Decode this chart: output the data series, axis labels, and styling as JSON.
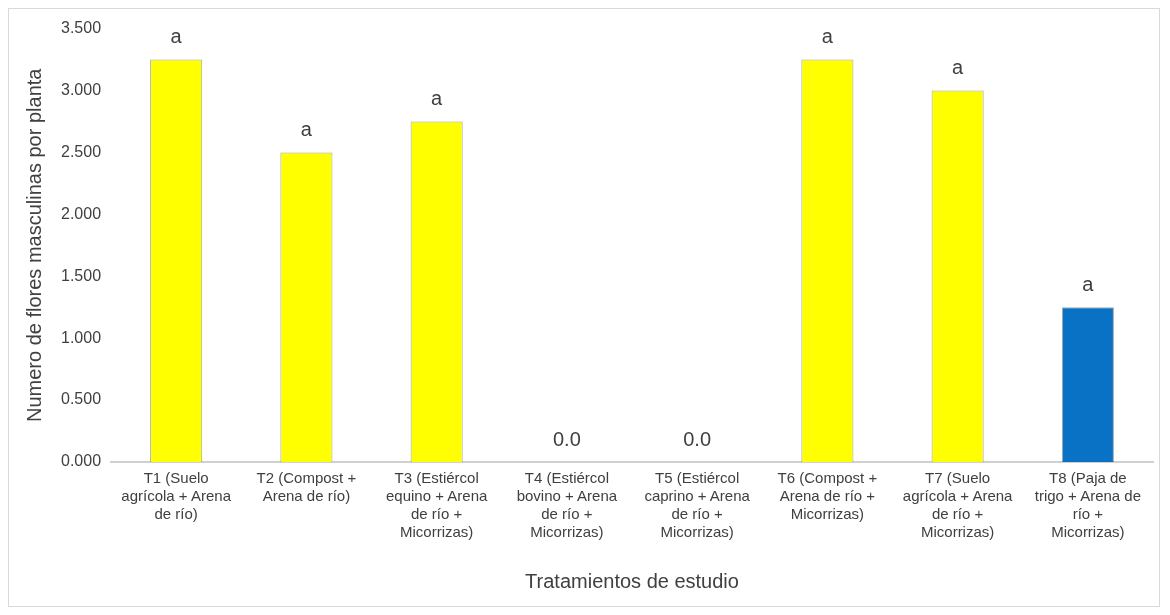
{
  "chart_data": {
    "type": "bar",
    "xlabel": "Tratamientos de estudio",
    "ylabel": "Numero de flores masculinas por planta",
    "categories": [
      "T1 (Suelo agrícola + Arena de río)",
      "T2 (Compost + Arena de río)",
      "T3 (Estiércol equino + Arena de río + Micorrizas)",
      "T4 (Estiércol bovino + Arena de río + Micorrizas)",
      "T5 (Estiércol caprino + Arena de río + Micorrizas)",
      "T6 (Compost + Arena de río + Micorrizas)",
      "T7 (Suelo agrícola + Arena de río + Micorrizas)",
      "T8 (Paja de trigo + Arena de río + Micorrizas)"
    ],
    "values": [
      3.25,
      2.5,
      2.75,
      0,
      0,
      3.25,
      3.0,
      1.25
    ],
    "colors": [
      "#ffff00",
      "#ffff00",
      "#ffff00",
      "#ffff00",
      "#ffff00",
      "#ffff00",
      "#ffff00",
      "#0a72c4"
    ],
    "value_labels": [
      "a",
      "a",
      "a",
      "0.0",
      "0.0",
      "a",
      "a",
      "a"
    ],
    "ylim": [
      0,
      3.5
    ],
    "yticks": [
      {
        "value": 0,
        "label": "0.000"
      },
      {
        "value": 0.5,
        "label": "0.500"
      },
      {
        "value": 1,
        "label": "1.000"
      },
      {
        "value": 1.5,
        "label": "1.500"
      },
      {
        "value": 2,
        "label": "2.000"
      },
      {
        "value": 2.5,
        "label": "2.500"
      },
      {
        "value": 3,
        "label": "3.000"
      },
      {
        "value": 3.5,
        "label": "3.500"
      }
    ],
    "grid": false,
    "legend": false
  }
}
